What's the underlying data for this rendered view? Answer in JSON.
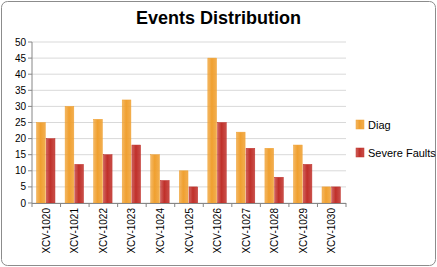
{
  "chart_data": {
    "type": "bar",
    "title": "Events Distribution",
    "categories": [
      "XCV-1020",
      "XCV-1021",
      "XCV-1022",
      "XCV-1023",
      "XCV-1024",
      "XCV-1025",
      "XCV-1026",
      "XCV-1027",
      "XCV-1028",
      "XCV-1029",
      "XCV-1030"
    ],
    "series": [
      {
        "name": "Diag",
        "color": "#f0a030",
        "values": [
          25,
          30,
          26,
          32,
          15,
          10,
          45,
          22,
          17,
          18,
          5
        ]
      },
      {
        "name": "Severe Faults",
        "color": "#c0302a",
        "values": [
          20,
          12,
          15,
          18,
          7,
          5,
          25,
          17,
          8,
          12,
          5
        ]
      }
    ],
    "ylim": [
      0,
      50
    ],
    "yticks": [
      0,
      5,
      10,
      15,
      20,
      25,
      30,
      35,
      40,
      45,
      50
    ],
    "grid": true,
    "legend": "right"
  }
}
